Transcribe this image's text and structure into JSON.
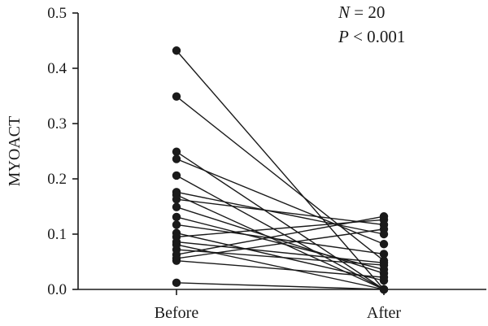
{
  "chart_data": {
    "type": "paired-scatter",
    "ylabel": "MYOACT",
    "categories": [
      "Before",
      "After"
    ],
    "ylim": [
      0,
      0.5
    ],
    "yticks": [
      "0.0",
      "0.1",
      "0.2",
      "0.3",
      "0.4",
      "0.5"
    ],
    "ytick_values": [
      0,
      0.1,
      0.2,
      0.3,
      0.4,
      0.5
    ],
    "annotation": {
      "n_symbol": "N",
      "n_text": " = 20",
      "p_symbol": "P",
      "p_text": " < 0.001"
    },
    "pairs": [
      {
        "before": 0.432,
        "after": 0.0
      },
      {
        "before": 0.349,
        "after": 0.052
      },
      {
        "before": 0.249,
        "after": 0.0
      },
      {
        "before": 0.236,
        "after": 0.082
      },
      {
        "before": 0.206,
        "after": 0.0
      },
      {
        "before": 0.176,
        "after": 0.1
      },
      {
        "before": 0.171,
        "after": 0.0
      },
      {
        "before": 0.163,
        "after": 0.117
      },
      {
        "before": 0.149,
        "after": 0.029
      },
      {
        "before": 0.131,
        "after": 0.036
      },
      {
        "before": 0.117,
        "after": 0.064
      },
      {
        "before": 0.102,
        "after": 0.016
      },
      {
        "before": 0.095,
        "after": 0.126
      },
      {
        "before": 0.086,
        "after": 0.048
      },
      {
        "before": 0.081,
        "after": 0.0
      },
      {
        "before": 0.072,
        "after": 0.044
      },
      {
        "before": 0.063,
        "after": 0.132
      },
      {
        "before": 0.056,
        "after": 0.109
      },
      {
        "before": 0.052,
        "after": 0.022
      },
      {
        "before": 0.012,
        "after": 0.0
      }
    ]
  }
}
